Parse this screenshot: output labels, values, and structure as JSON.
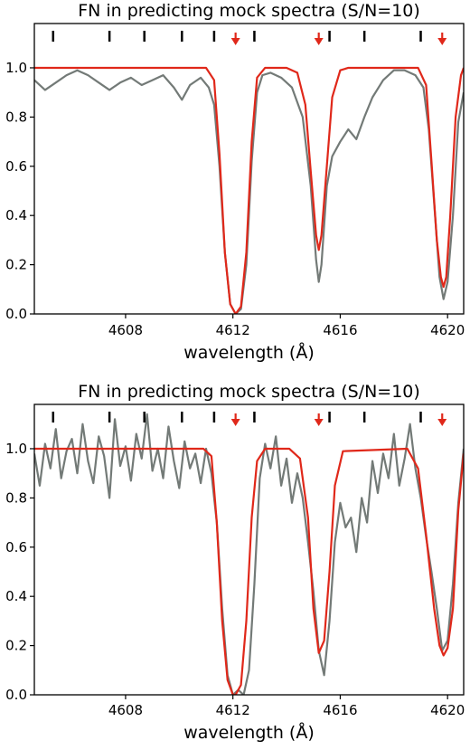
{
  "chart_data": [
    {
      "type": "line",
      "title": "FN in predicting mock spectra (S/N=10)",
      "xlabel": "wavelength (Å)",
      "ylabel": "",
      "xlim": [
        4604.6,
        4620.6
      ],
      "ylim": [
        0.0,
        1.18
      ],
      "x_ticks": [
        {
          "value": 4608,
          "label": "4608"
        },
        {
          "value": 4612,
          "label": "4612"
        },
        {
          "value": 4616,
          "label": "4616"
        },
        {
          "value": 4620,
          "label": "4620"
        }
      ],
      "y_ticks": [
        {
          "value": 0.0,
          "label": "0.0"
        },
        {
          "value": 0.2,
          "label": "0.2"
        },
        {
          "value": 0.4,
          "label": "0.4"
        },
        {
          "value": 0.6,
          "label": "0.6"
        },
        {
          "value": 0.8,
          "label": "0.8"
        },
        {
          "value": 1.0,
          "label": "1.0"
        }
      ],
      "line_markers_x": [
        4605.3,
        4607.4,
        4608.7,
        4610.1,
        4611.3,
        4612.8,
        4615.6,
        4616.9,
        4619.0
      ],
      "predicted_arrows_x": [
        4612.1,
        4615.2,
        4619.8
      ],
      "series": [
        {
          "color": "#737a77",
          "x": [
            4604.6,
            4605.0,
            4605.4,
            4605.8,
            4606.2,
            4606.6,
            4607.0,
            4607.4,
            4607.8,
            4608.2,
            4608.6,
            4609.0,
            4609.4,
            4609.8,
            4610.1,
            4610.4,
            4610.8,
            4611.1,
            4611.3,
            4611.5,
            4611.7,
            4611.9,
            4612.1,
            4612.3,
            4612.5,
            4612.7,
            4612.9,
            4613.1,
            4613.4,
            4613.8,
            4614.2,
            4614.6,
            4614.9,
            4615.1,
            4615.2,
            4615.3,
            4615.5,
            4615.7,
            4616.0,
            4616.3,
            4616.6,
            4616.9,
            4617.2,
            4617.6,
            4618.0,
            4618.4,
            4618.8,
            4619.1,
            4619.3,
            4619.5,
            4619.7,
            4619.85,
            4620.0,
            4620.2,
            4620.4,
            4620.6
          ],
          "values": [
            0.95,
            0.91,
            0.94,
            0.97,
            0.99,
            0.97,
            0.94,
            0.91,
            0.94,
            0.96,
            0.93,
            0.95,
            0.97,
            0.92,
            0.87,
            0.93,
            0.96,
            0.92,
            0.85,
            0.6,
            0.25,
            0.04,
            0.0,
            0.02,
            0.2,
            0.62,
            0.9,
            0.97,
            0.98,
            0.96,
            0.92,
            0.8,
            0.52,
            0.22,
            0.13,
            0.2,
            0.52,
            0.64,
            0.7,
            0.75,
            0.71,
            0.8,
            0.88,
            0.95,
            0.99,
            0.99,
            0.97,
            0.92,
            0.75,
            0.45,
            0.15,
            0.06,
            0.13,
            0.4,
            0.78,
            0.9
          ]
        },
        {
          "color": "#e0281a",
          "x": [
            4604.6,
            4611.0,
            4611.3,
            4611.5,
            4611.7,
            4611.9,
            4612.1,
            4612.3,
            4612.5,
            4612.7,
            4612.9,
            4613.2,
            4614.0,
            4614.4,
            4614.7,
            4614.9,
            4615.1,
            4615.2,
            4615.3,
            4615.5,
            4615.7,
            4616.0,
            4616.3,
            4618.9,
            4619.2,
            4619.4,
            4619.6,
            4619.75,
            4619.85,
            4619.95,
            4620.1,
            4620.3,
            4620.5,
            4620.6
          ],
          "values": [
            1.0,
            1.0,
            0.95,
            0.65,
            0.25,
            0.04,
            0.0,
            0.03,
            0.25,
            0.7,
            0.96,
            1.0,
            1.0,
            0.98,
            0.85,
            0.58,
            0.32,
            0.26,
            0.32,
            0.6,
            0.88,
            0.99,
            1.0,
            1.0,
            0.93,
            0.62,
            0.3,
            0.15,
            0.11,
            0.15,
            0.4,
            0.8,
            0.97,
            1.0
          ]
        }
      ]
    },
    {
      "type": "line",
      "title": "FN in predicting mock spectra (S/N=10)",
      "xlabel": "wavelength (Å)",
      "ylabel": "",
      "xlim": [
        4604.6,
        4620.6
      ],
      "ylim": [
        0.0,
        1.18
      ],
      "x_ticks": [
        {
          "value": 4608,
          "label": "4608"
        },
        {
          "value": 4612,
          "label": "4612"
        },
        {
          "value": 4616,
          "label": "4616"
        },
        {
          "value": 4620,
          "label": "4620"
        }
      ],
      "y_ticks": [
        {
          "value": 0.0,
          "label": "0.0"
        },
        {
          "value": 0.2,
          "label": "0.2"
        },
        {
          "value": 0.4,
          "label": "0.4"
        },
        {
          "value": 0.6,
          "label": "0.6"
        },
        {
          "value": 0.8,
          "label": "0.8"
        },
        {
          "value": 1.0,
          "label": "1.0"
        }
      ],
      "line_markers_x": [
        4605.3,
        4607.4,
        4608.7,
        4610.1,
        4611.3,
        4612.8,
        4615.6,
        4616.9,
        4619.0
      ],
      "predicted_arrows_x": [
        4612.1,
        4615.2,
        4619.8
      ],
      "series": [
        {
          "color": "#737a77",
          "x": [
            4604.6,
            4604.8,
            4605.0,
            4605.2,
            4605.4,
            4605.6,
            4605.8,
            4606.0,
            4606.2,
            4606.4,
            4606.6,
            4606.8,
            4607.0,
            4607.2,
            4607.4,
            4607.6,
            4607.8,
            4608.0,
            4608.2,
            4608.4,
            4608.6,
            4608.8,
            4609.0,
            4609.2,
            4609.4,
            4609.6,
            4609.8,
            4610.0,
            4610.2,
            4610.4,
            4610.6,
            4610.8,
            4611.0,
            4611.2,
            4611.4,
            4611.6,
            4611.8,
            4612.0,
            4612.2,
            4612.4,
            4612.6,
            4612.8,
            4613.0,
            4613.2,
            4613.4,
            4613.6,
            4613.8,
            4614.0,
            4614.2,
            4614.4,
            4614.6,
            4614.8,
            4615.0,
            4615.2,
            4615.4,
            4615.6,
            4615.8,
            4616.0,
            4616.2,
            4616.4,
            4616.6,
            4616.8,
            4617.0,
            4617.2,
            4617.4,
            4617.6,
            4617.8,
            4618.0,
            4618.2,
            4618.4,
            4618.6,
            4618.8,
            4619.0,
            4619.2,
            4619.4,
            4619.6,
            4619.8,
            4620.0,
            4620.2,
            4620.4,
            4620.6
          ],
          "values": [
            0.98,
            0.85,
            1.02,
            0.92,
            1.08,
            0.88,
            0.99,
            1.04,
            0.9,
            1.1,
            0.95,
            0.86,
            1.05,
            0.97,
            0.8,
            1.12,
            0.93,
            1.01,
            0.87,
            1.06,
            0.96,
            1.14,
            0.91,
            1.0,
            0.88,
            1.09,
            0.95,
            0.84,
            1.03,
            0.92,
            0.98,
            0.86,
            1.0,
            0.9,
            0.7,
            0.35,
            0.08,
            0.0,
            0.02,
            0.0,
            0.1,
            0.45,
            0.88,
            1.02,
            0.92,
            1.05,
            0.85,
            0.96,
            0.78,
            0.9,
            0.8,
            0.62,
            0.42,
            0.18,
            0.08,
            0.3,
            0.62,
            0.78,
            0.68,
            0.72,
            0.58,
            0.8,
            0.7,
            0.95,
            0.82,
            0.98,
            0.88,
            1.06,
            0.85,
            0.96,
            1.1,
            0.92,
            0.8,
            0.64,
            0.5,
            0.35,
            0.18,
            0.22,
            0.45,
            0.78,
            1.0
          ]
        },
        {
          "color": "#e0281a",
          "x": [
            4604.6,
            4610.9,
            4611.2,
            4611.4,
            4611.6,
            4611.8,
            4612.0,
            4612.1,
            4612.3,
            4612.5,
            4612.7,
            4612.9,
            4613.2,
            4614.1,
            4614.5,
            4614.8,
            4615.0,
            4615.2,
            4615.4,
            4615.6,
            4615.8,
            4616.1,
            4618.5,
            4618.9,
            4619.2,
            4619.5,
            4619.7,
            4619.85,
            4620.0,
            4620.2,
            4620.4,
            4620.6
          ],
          "values": [
            1.0,
            1.0,
            0.97,
            0.7,
            0.3,
            0.06,
            0.0,
            0.0,
            0.04,
            0.3,
            0.72,
            0.95,
            1.0,
            1.0,
            0.96,
            0.72,
            0.35,
            0.17,
            0.22,
            0.5,
            0.85,
            0.99,
            1.0,
            0.92,
            0.65,
            0.35,
            0.2,
            0.16,
            0.19,
            0.35,
            0.75,
            0.98
          ]
        }
      ]
    }
  ]
}
